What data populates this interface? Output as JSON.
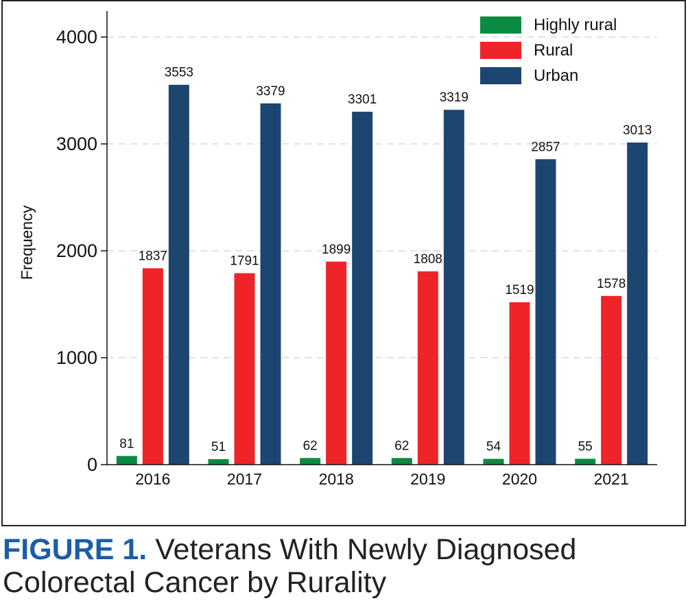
{
  "chart_data": {
    "type": "bar",
    "categories": [
      "2016",
      "2017",
      "2018",
      "2019",
      "2020",
      "2021"
    ],
    "series": [
      {
        "name": "Highly rural",
        "color": "#0b8a42",
        "values": [
          81,
          51,
          62,
          62,
          54,
          55
        ]
      },
      {
        "name": "Rural",
        "color": "#ee2428",
        "values": [
          1837,
          1791,
          1899,
          1808,
          1519,
          1578
        ]
      },
      {
        "name": "Urban",
        "color": "#1c4670",
        "values": [
          3553,
          3379,
          3301,
          3319,
          2857,
          3013
        ]
      }
    ],
    "ylabel": "Frequency",
    "xlabel": "",
    "ylim": [
      0,
      4000
    ],
    "yticks": [
      0,
      1000,
      2000,
      3000,
      4000
    ],
    "grid": "horizontal dashed",
    "legend_position": "top-right",
    "data_labels": true
  },
  "caption": {
    "label": "FIGURE 1.",
    "line1": "Veterans With Newly Diagnosed",
    "line2": "Colorectal Cancer by Rurality"
  }
}
